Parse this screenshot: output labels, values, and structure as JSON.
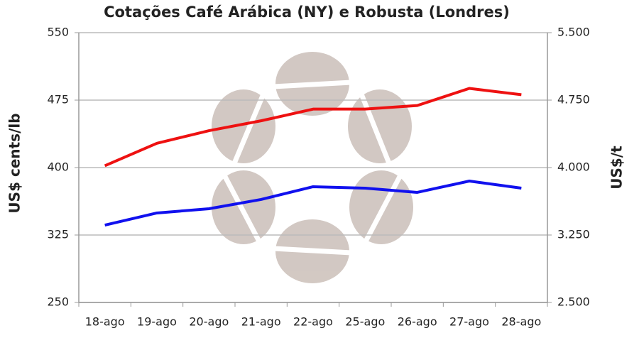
{
  "chart_data": {
    "type": "line",
    "title": "Cotações Café Arábica (NY) e Robusta (Londres)",
    "ylabel": "US$ cents/lb",
    "y2label": "US$/t",
    "categories": [
      "18-ago",
      "19-ago",
      "20-ago",
      "21-ago",
      "22-ago",
      "25-ago",
      "26-ago",
      "27-ago",
      "28-ago"
    ],
    "series": [
      {
        "color": "#ee1111",
        "values": [
          402,
          427,
          441,
          452,
          465,
          465,
          469,
          488,
          481
        ]
      },
      {
        "color": "#1111ee",
        "axis": "y2",
        "values": [
          3360,
          3495,
          3542,
          3645,
          3787,
          3771,
          3724,
          3850,
          3771
        ]
      }
    ],
    "ylim": [
      250,
      550
    ],
    "yticks": [
      250,
      325,
      400,
      475,
      550
    ],
    "y2lim": [
      2500,
      5500
    ],
    "y2ticks": [
      {
        "value": 2500,
        "label": "2.500"
      },
      {
        "value": 3250,
        "label": "3.250"
      },
      {
        "value": 4000,
        "label": "4.000"
      },
      {
        "value": 4750,
        "label": "4.750"
      },
      {
        "value": 5500,
        "label": "5.500"
      }
    ],
    "grid": true
  }
}
